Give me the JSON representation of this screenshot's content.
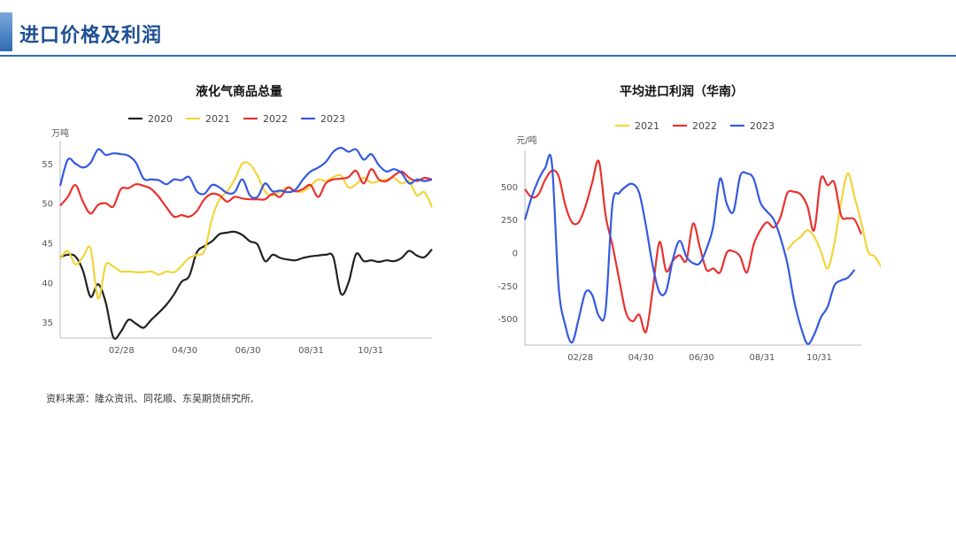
{
  "header": {
    "title": "进口价格及利润"
  },
  "source_note": "资料来源：隆众资讯、同花顺、东吴期货研究所,",
  "chart_data": [
    {
      "type": "line",
      "title": "液化气商品总量",
      "ylabel": "万吨",
      "xlabel": "",
      "x_ticks": [
        "02/28",
        "04/30",
        "06/30",
        "08/31",
        "10/31"
      ],
      "y_ticks": [
        35,
        40,
        45,
        50,
        55
      ],
      "ylim": [
        33,
        57
      ],
      "legend_position": "top",
      "grid": false,
      "series": [
        {
          "name": "2020",
          "color": "#222222",
          "values": [
            43.2,
            43.5,
            43.3,
            41.5,
            38.2,
            39.8,
            37.5,
            33.1,
            33.8,
            35.3,
            34.8,
            34.3,
            35.3,
            36.2,
            37.2,
            38.5,
            40.1,
            40.8,
            43.8,
            44.6,
            45.2,
            46.1,
            46.3,
            46.4,
            46.0,
            45.2,
            44.8,
            42.7,
            43.5,
            43.1,
            42.9,
            42.8,
            43.1,
            43.3,
            43.4,
            43.5,
            43.2,
            38.6,
            40.0,
            43.6,
            42.7,
            42.8,
            42.6,
            42.8,
            42.7,
            43.1,
            44.0,
            43.4,
            43.2,
            44.2
          ]
        },
        {
          "name": "2021",
          "color": "#f2d43a",
          "values": [
            43.0,
            44.0,
            42.3,
            43.2,
            44.3,
            38.0,
            42.2,
            42.0,
            41.4,
            41.4,
            41.3,
            41.3,
            41.4,
            41.0,
            41.4,
            41.3,
            42.1,
            43.1,
            43.5,
            44.0,
            48.0,
            50.5,
            51.5,
            53.0,
            55.0,
            54.9,
            53.5,
            51.5,
            51.0,
            51.5,
            52.0,
            51.5,
            51.5,
            52.2,
            53.0,
            52.8,
            53.3,
            53.5,
            52.0,
            52.4,
            53.2,
            52.6,
            52.8,
            53.0,
            53.2,
            52.5,
            52.8,
            51.0,
            51.4,
            49.5
          ]
        },
        {
          "name": "2022",
          "color": "#e8322f",
          "values": [
            49.7,
            50.8,
            52.3,
            50.2,
            48.7,
            49.8,
            50.0,
            49.6,
            51.8,
            51.9,
            52.4,
            52.2,
            51.8,
            50.8,
            49.5,
            48.3,
            48.5,
            48.3,
            49.0,
            50.5,
            51.2,
            51.0,
            50.2,
            50.8,
            50.6,
            50.5,
            50.5,
            50.5,
            51.2,
            50.8,
            52.0,
            51.5,
            51.8,
            52.3,
            50.8,
            52.5,
            53.0,
            53.1,
            53.3,
            54.1,
            52.5,
            54.3,
            53.0,
            52.8,
            53.5,
            54.0,
            53.2,
            52.8,
            53.2,
            53.0
          ]
        },
        {
          "name": "2023",
          "color": "#3559e0",
          "values": [
            52.2,
            55.5,
            55.0,
            54.5,
            55.1,
            56.8,
            56.1,
            56.3,
            56.2,
            56.0,
            55.1,
            53.1,
            53.0,
            52.9,
            52.4,
            53.0,
            52.9,
            53.3,
            51.5,
            51.2,
            52.3,
            52.0,
            51.3,
            51.4,
            53.0,
            51.0,
            50.8,
            52.5,
            51.5,
            51.6,
            51.4,
            51.7,
            53.0,
            54.0,
            54.5,
            55.2,
            56.5,
            57.0,
            56.5,
            56.8,
            55.5,
            56.2,
            54.8,
            54.0,
            54.3,
            53.8,
            52.5,
            53.0,
            52.8,
            53.0
          ]
        }
      ]
    },
    {
      "type": "line",
      "title": "平均进口利润（华南）",
      "ylabel": "元/吨",
      "xlabel": "",
      "x_ticks": [
        "02/28",
        "04/30",
        "06/30",
        "08/31",
        "10/31"
      ],
      "y_ticks": [
        500,
        250,
        0,
        -250,
        -500
      ],
      "ylim": [
        -700,
        720
      ],
      "legend_position": "top",
      "grid": false,
      "series": [
        {
          "name": "2021",
          "color": "#f2d43a",
          "start_index": 39,
          "values": [
            20,
            80,
            120,
            170,
            120,
            10,
            -120,
            70,
            380,
            600,
            420,
            230,
            10,
            -30,
            -110
          ]
        },
        {
          "name": "2022",
          "color": "#e8322f",
          "values": [
            480,
            420,
            440,
            550,
            620,
            580,
            360,
            230,
            230,
            350,
            530,
            690,
            280,
            60,
            -200,
            -450,
            -520,
            -470,
            -600,
            -280,
            80,
            -140,
            -60,
            -20,
            -60,
            220,
            40,
            -130,
            -120,
            -150,
            0,
            10,
            -30,
            -150,
            60,
            170,
            230,
            190,
            270,
            450,
            460,
            440,
            350,
            170,
            560,
            510,
            530,
            280,
            260,
            250,
            140
          ]
        },
        {
          "name": "2023",
          "color": "#3559e0",
          "values": [
            250,
            420,
            550,
            640,
            680,
            -250,
            -550,
            -680,
            -500,
            -300,
            -320,
            -480,
            -430,
            360,
            450,
            500,
            520,
            450,
            200,
            -100,
            -300,
            -290,
            -50,
            90,
            -30,
            -80,
            -80,
            30,
            200,
            560,
            370,
            310,
            580,
            600,
            560,
            380,
            310,
            250,
            110,
            -80,
            -360,
            -560,
            -690,
            -620,
            -490,
            -410,
            -250,
            -210,
            -190,
            -130
          ]
        }
      ]
    }
  ]
}
